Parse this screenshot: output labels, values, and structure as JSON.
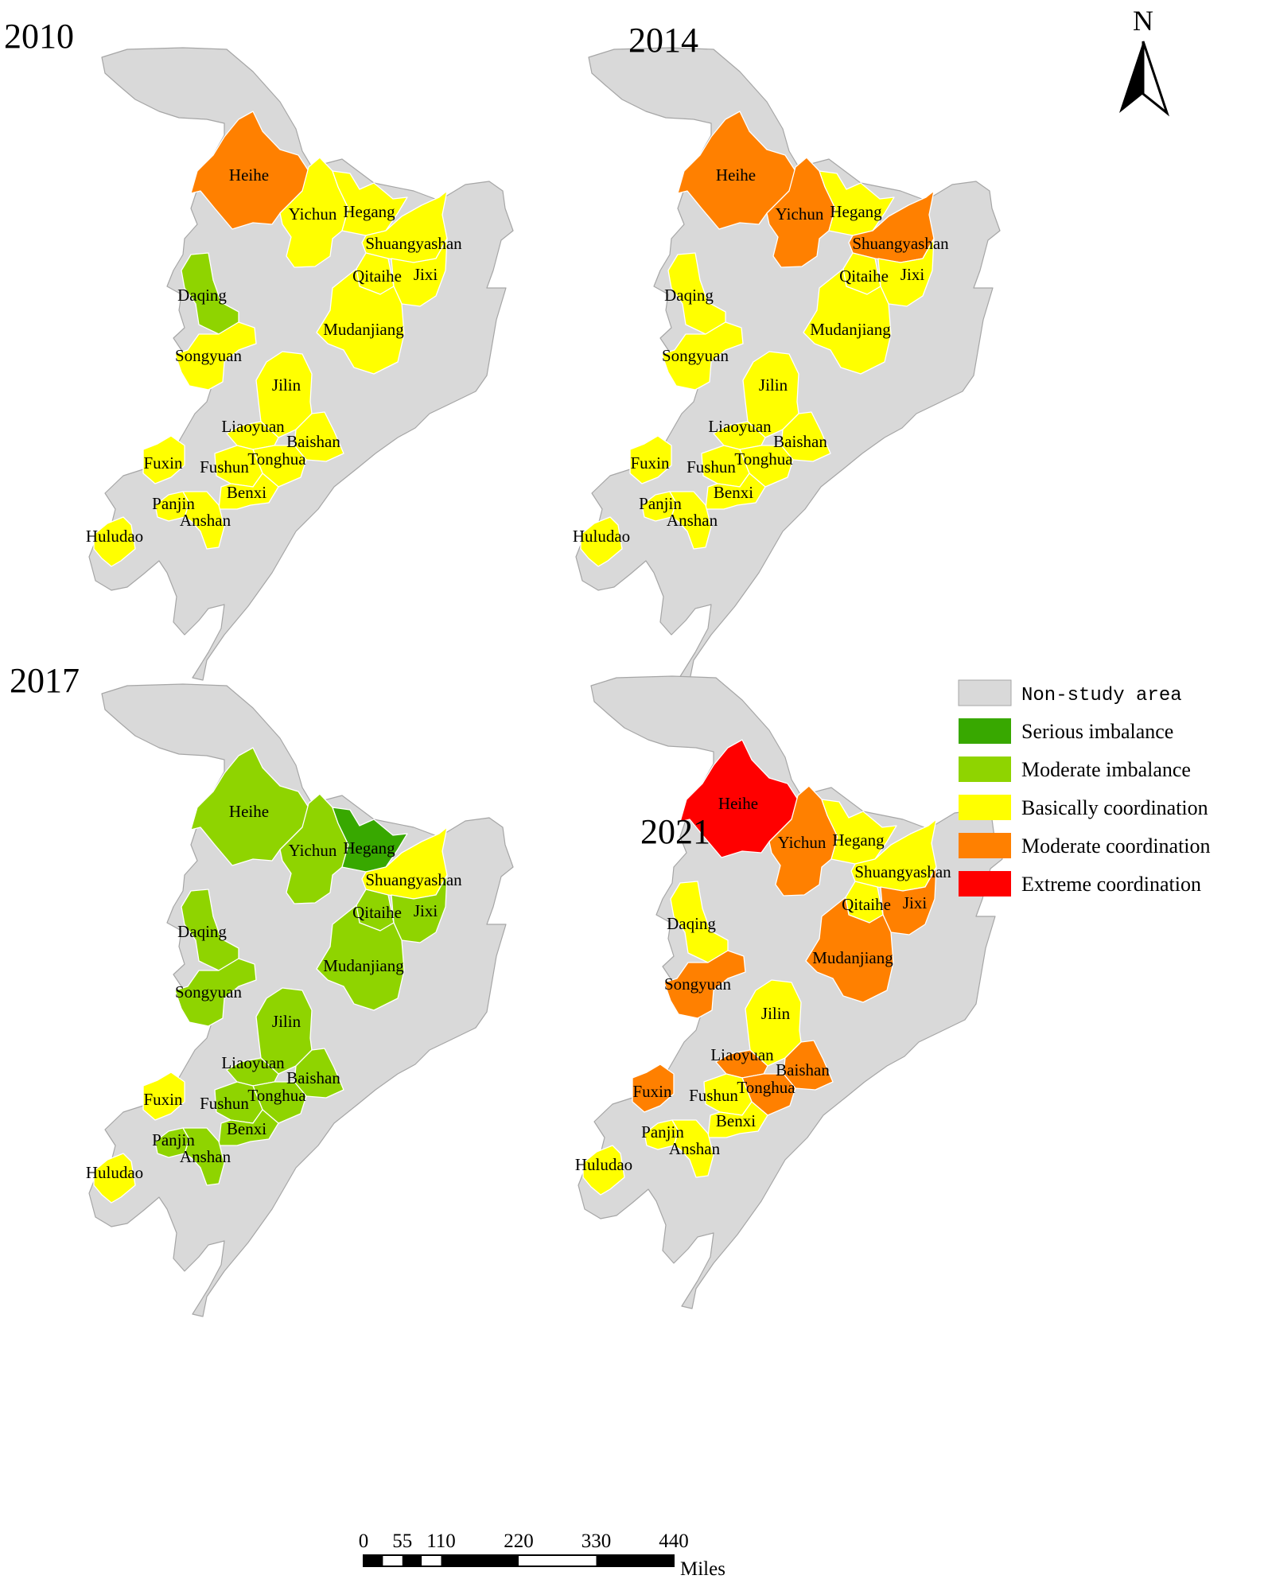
{
  "colors": {
    "non_study": "#d9d9d9",
    "serious_imbalance": "#38a800",
    "moderate_imbalance": "#8fd400",
    "basically_coordination": "#ffff00",
    "moderate_coordination": "#ff8000",
    "extreme_coordination": "#ff0000"
  },
  "legend": [
    {
      "key": "non_study",
      "label": "Non-study area"
    },
    {
      "key": "serious_imbalance",
      "label": "Serious imbalance"
    },
    {
      "key": "moderate_imbalance",
      "label": "Moderate imbalance"
    },
    {
      "key": "basically_coordination",
      "label": "Basically coordination"
    },
    {
      "key": "moderate_coordination",
      "label": "Moderate coordination"
    },
    {
      "key": "extreme_coordination",
      "label": "Extreme coordination"
    }
  ],
  "north_arrow": {
    "label": "N"
  },
  "scale_bar": {
    "ticks": [
      "0",
      "55",
      "110",
      "220",
      "330",
      "440"
    ],
    "unit": "Miles"
  },
  "panels": [
    {
      "year": "2010",
      "cities": {
        "Heihe": "moderate_coordination",
        "Yichun": "basically_coordination",
        "Hegang": "basically_coordination",
        "Shuangyashan": "basically_coordination",
        "Jixi": "basically_coordination",
        "Qitaihe": "basically_coordination",
        "Mudanjiang": "basically_coordination",
        "Daqing": "moderate_imbalance",
        "Songyuan": "basically_coordination",
        "Jilin": "basically_coordination",
        "Liaoyuan": "basically_coordination",
        "Baishan": "basically_coordination",
        "Tonghua": "basically_coordination",
        "Fushun": "basically_coordination",
        "Benxi": "basically_coordination",
        "Fuxin": "basically_coordination",
        "Panjin": "basically_coordination",
        "Anshan": "basically_coordination",
        "Huludao": "basically_coordination"
      }
    },
    {
      "year": "2014",
      "cities": {
        "Heihe": "moderate_coordination",
        "Yichun": "moderate_coordination",
        "Hegang": "basically_coordination",
        "Shuangyashan": "moderate_coordination",
        "Jixi": "basically_coordination",
        "Qitaihe": "basically_coordination",
        "Mudanjiang": "basically_coordination",
        "Daqing": "basically_coordination",
        "Songyuan": "basically_coordination",
        "Jilin": "basically_coordination",
        "Liaoyuan": "basically_coordination",
        "Baishan": "basically_coordination",
        "Tonghua": "basically_coordination",
        "Fushun": "basically_coordination",
        "Benxi": "basically_coordination",
        "Fuxin": "basically_coordination",
        "Panjin": "basically_coordination",
        "Anshan": "basically_coordination",
        "Huludao": "basically_coordination"
      }
    },
    {
      "year": "2017",
      "cities": {
        "Heihe": "moderate_imbalance",
        "Yichun": "moderate_imbalance",
        "Hegang": "serious_imbalance",
        "Shuangyashan": "basically_coordination",
        "Jixi": "moderate_imbalance",
        "Qitaihe": "moderate_imbalance",
        "Mudanjiang": "moderate_imbalance",
        "Daqing": "moderate_imbalance",
        "Songyuan": "moderate_imbalance",
        "Jilin": "moderate_imbalance",
        "Liaoyuan": "moderate_imbalance",
        "Baishan": "moderate_imbalance",
        "Tonghua": "moderate_imbalance",
        "Fushun": "moderate_imbalance",
        "Benxi": "moderate_imbalance",
        "Fuxin": "basically_coordination",
        "Panjin": "moderate_imbalance",
        "Anshan": "moderate_imbalance",
        "Huludao": "basically_coordination"
      }
    },
    {
      "year": "2021",
      "cities": {
        "Heihe": "extreme_coordination",
        "Yichun": "moderate_coordination",
        "Hegang": "basically_coordination",
        "Shuangyashan": "basically_coordination",
        "Jixi": "moderate_coordination",
        "Qitaihe": "basically_coordination",
        "Mudanjiang": "moderate_coordination",
        "Daqing": "basically_coordination",
        "Songyuan": "moderate_coordination",
        "Jilin": "basically_coordination",
        "Liaoyuan": "moderate_coordination",
        "Baishan": "moderate_coordination",
        "Tonghua": "moderate_coordination",
        "Fushun": "basically_coordination",
        "Benxi": "basically_coordination",
        "Fuxin": "moderate_coordination",
        "Panjin": "basically_coordination",
        "Anshan": "basically_coordination",
        "Huludao": "basically_coordination"
      }
    }
  ]
}
